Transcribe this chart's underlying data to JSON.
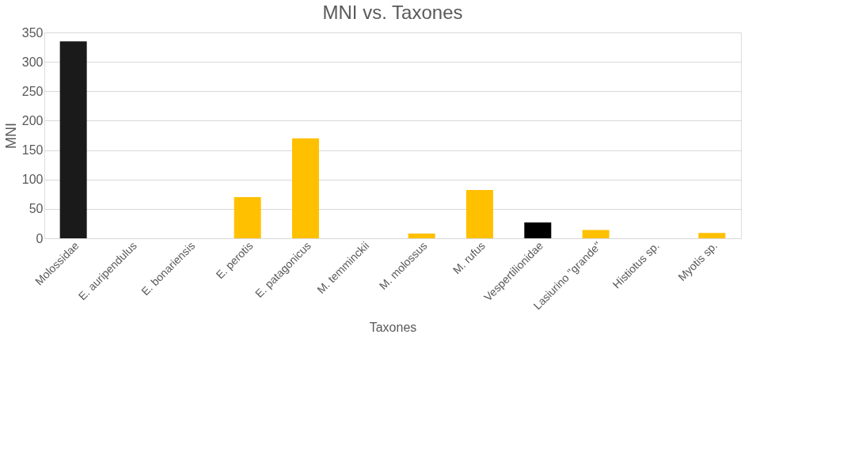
{
  "chart_data": {
    "type": "bar",
    "title": "MNI vs. Taxones",
    "xlabel": "Taxones",
    "ylabel": "MNI",
    "categories": [
      "Molossidae",
      "E. auripendulus",
      "E. bonariensis",
      "E. perotis",
      "E. patagonicus",
      "M. temminckii",
      "M. molossus",
      "M. rufus",
      "Vespertilionidae",
      "Lasiurino \"grande\"",
      "Histiotus sp.",
      "Myotis sp."
    ],
    "values": [
      335,
      0,
      0,
      70,
      170,
      0,
      8,
      82,
      27,
      14,
      0,
      9
    ],
    "colors": [
      "#1a1a1a",
      "#ffc000",
      "#ffc000",
      "#ffc000",
      "#ffc000",
      "#ffc000",
      "#ffc000",
      "#ffc000",
      "#000000",
      "#ffc000",
      "#ffc000",
      "#ffc000"
    ],
    "ylim": [
      0,
      350
    ],
    "yticks": [
      0,
      50,
      100,
      150,
      200,
      250,
      300,
      350
    ],
    "grid": "y"
  }
}
